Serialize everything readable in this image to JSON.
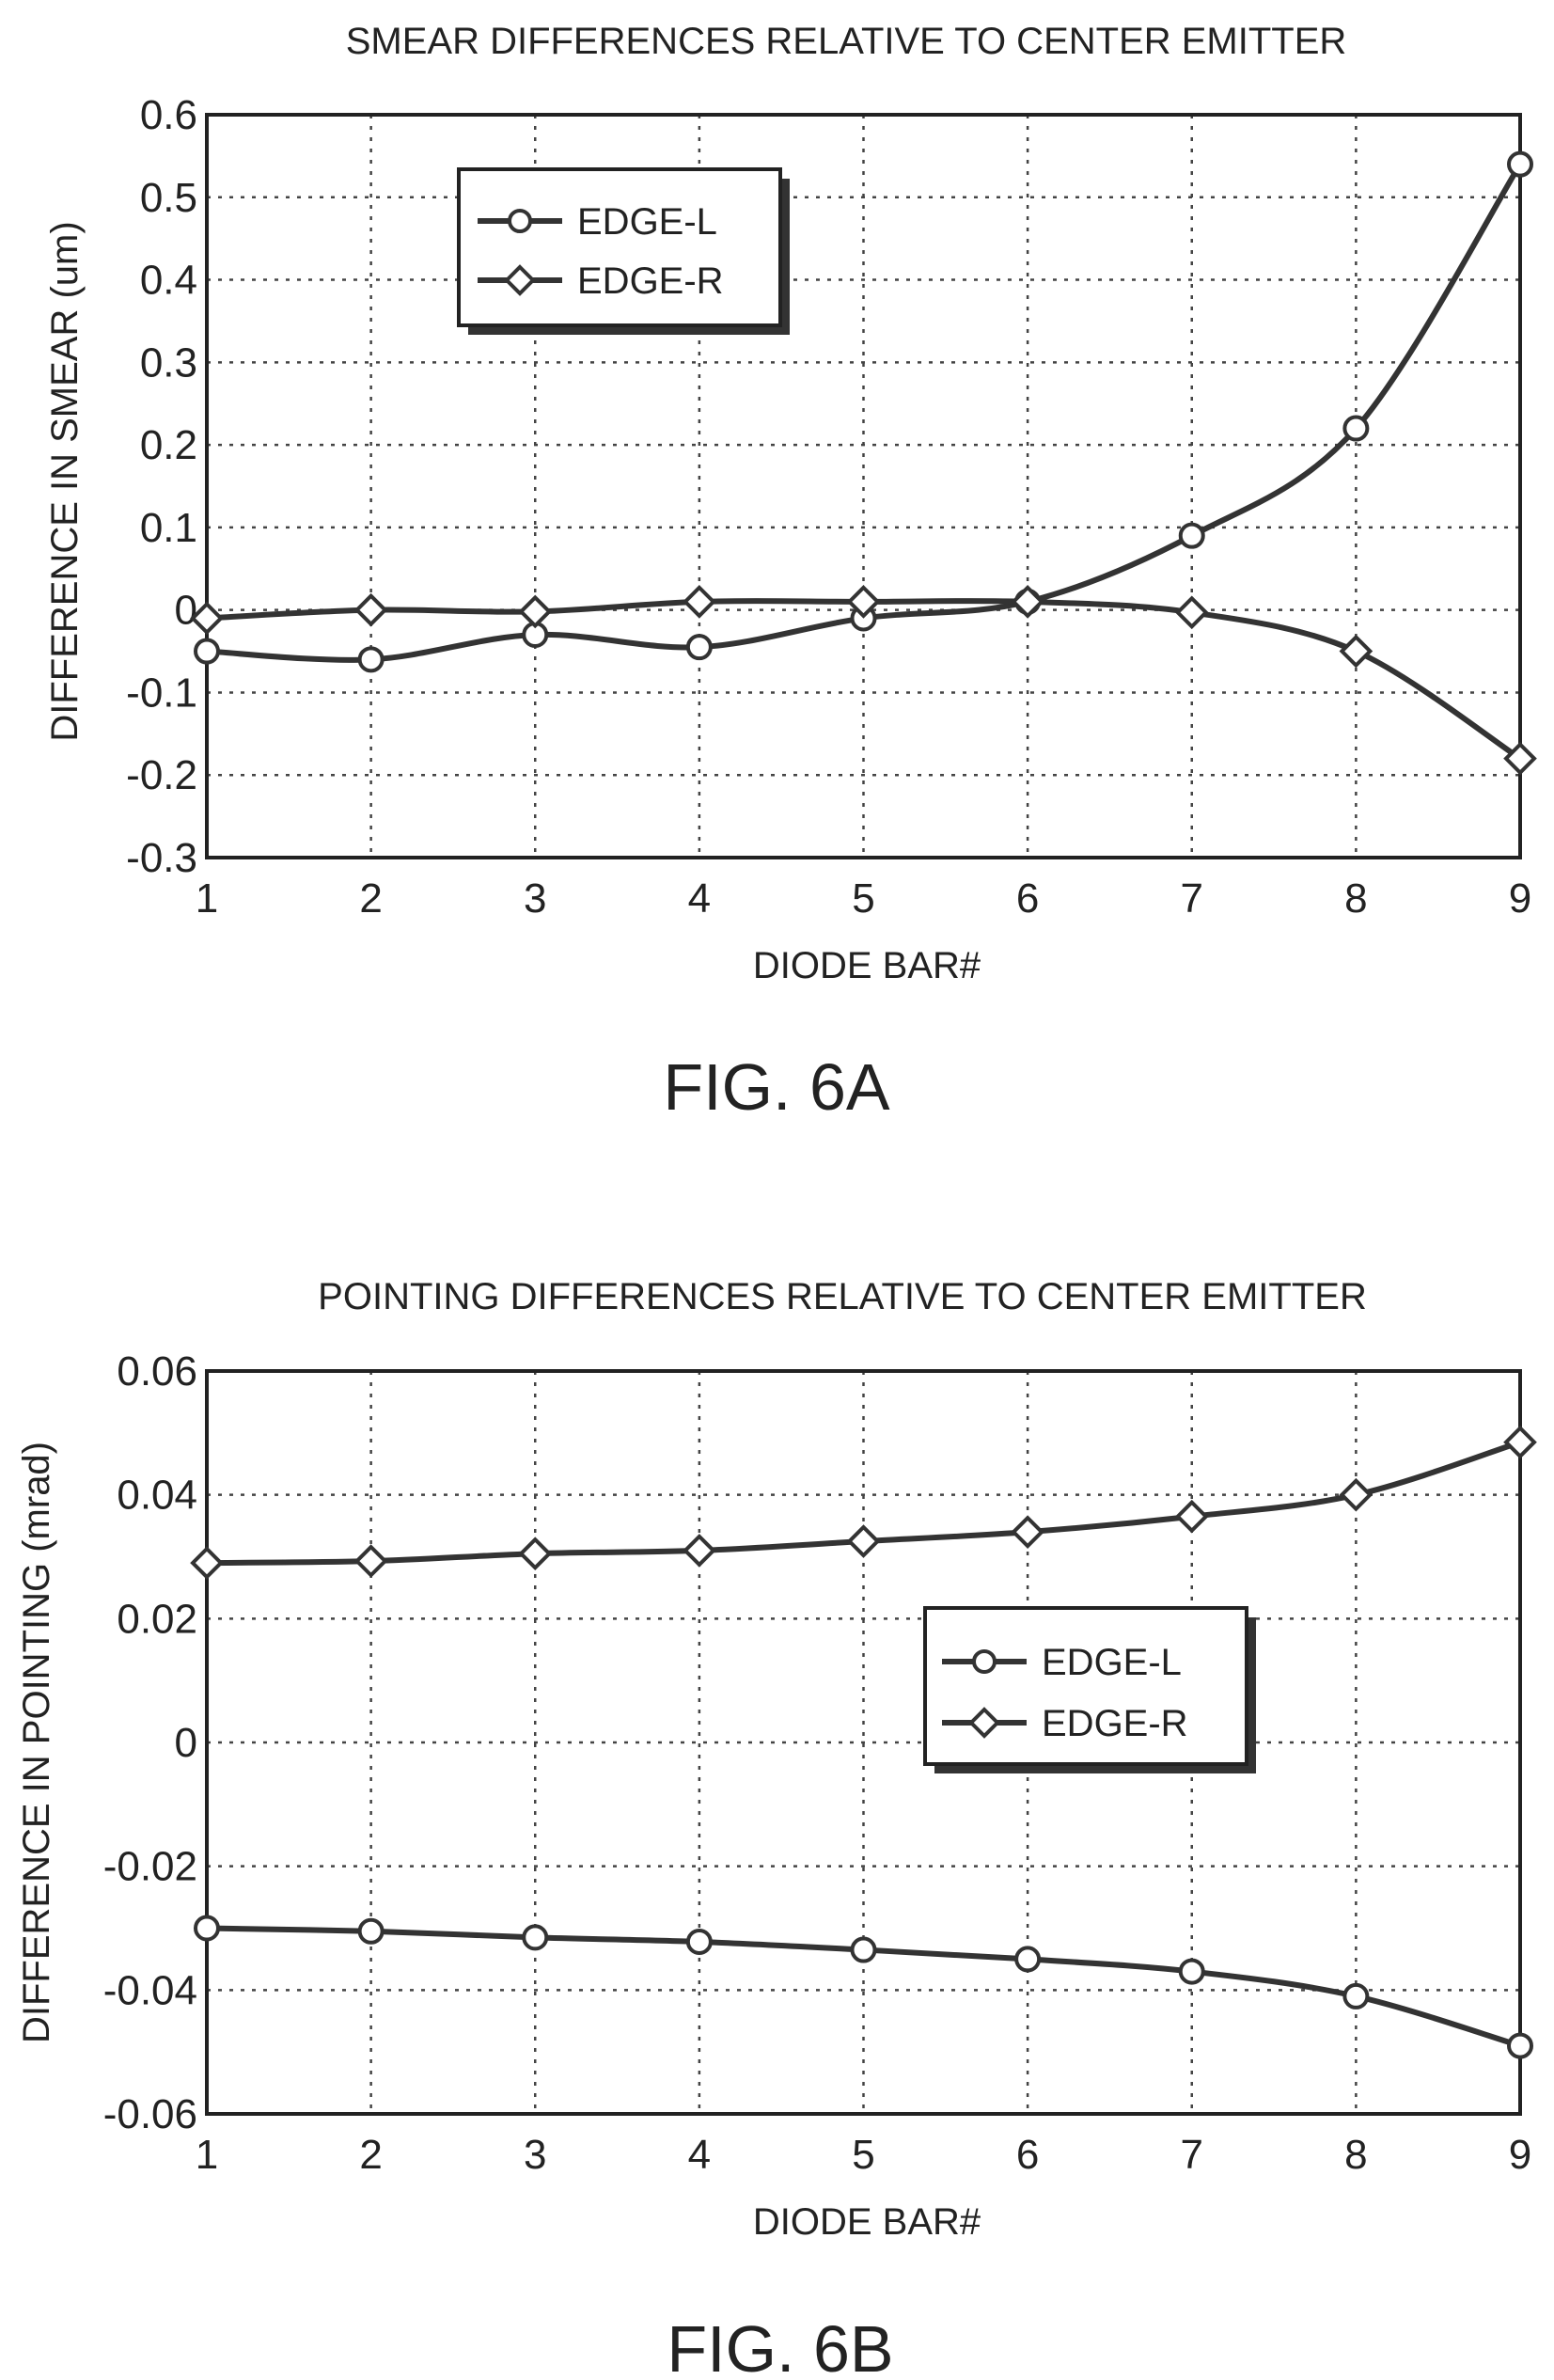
{
  "chart_data": [
    {
      "type": "line",
      "title": "SMEAR DIFFERENCES RELATIVE TO CENTER EMITTER",
      "xlabel": "DIODE BAR#",
      "ylabel": "DIFFERENCE IN SMEAR (um)",
      "caption": "FIG. 6A",
      "x": [
        1,
        2,
        3,
        4,
        5,
        6,
        7,
        8,
        9
      ],
      "xlim": [
        1,
        9
      ],
      "ylim": [
        -0.3,
        0.6
      ],
      "yticks": [
        0.6,
        0.5,
        0.4,
        0.3,
        0.2,
        0.1,
        0,
        -0.1,
        -0.2,
        -0.3
      ],
      "ytick_labels": [
        "0.6",
        "0.5",
        "0.4",
        "0.3",
        "0.2",
        "0.1",
        "0",
        "-0.1",
        "-0.2",
        "-0.3"
      ],
      "xtick_labels": [
        "1",
        "2",
        "3",
        "4",
        "5",
        "6",
        "7",
        "8",
        "9"
      ],
      "grid": true,
      "legend_position": "upper-left",
      "series": [
        {
          "name": "EDGE-L",
          "marker": "circle",
          "values": [
            -0.05,
            -0.06,
            -0.03,
            -0.045,
            -0.01,
            0.01,
            0.09,
            0.22,
            0.54
          ]
        },
        {
          "name": "EDGE-R",
          "marker": "diamond",
          "values": [
            -0.01,
            0.0,
            -0.002,
            0.01,
            0.01,
            0.01,
            -0.003,
            -0.05,
            -0.18
          ]
        }
      ]
    },
    {
      "type": "line",
      "title": "POINTING DIFFERENCES RELATIVE TO CENTER EMITTER",
      "xlabel": "DIODE BAR#",
      "ylabel": "DIFFERENCE IN POINTING (mrad)",
      "caption": "FIG. 6B",
      "x": [
        1,
        2,
        3,
        4,
        5,
        6,
        7,
        8,
        9
      ],
      "xlim": [
        1,
        9
      ],
      "ylim": [
        -0.06,
        0.06
      ],
      "yticks": [
        0.06,
        0.04,
        0.02,
        0,
        -0.02,
        -0.04,
        -0.06
      ],
      "ytick_labels": [
        "0.06",
        "0.04",
        "0.02",
        "0",
        "-0.02",
        "-0.04",
        "-0.06"
      ],
      "xtick_labels": [
        "1",
        "2",
        "3",
        "4",
        "5",
        "6",
        "7",
        "8",
        "9"
      ],
      "grid": true,
      "legend_position": "center-right",
      "series": [
        {
          "name": "EDGE-L",
          "marker": "circle",
          "values": [
            -0.03,
            -0.0305,
            -0.0315,
            -0.0322,
            -0.0335,
            -0.035,
            -0.037,
            -0.041,
            -0.049
          ]
        },
        {
          "name": "EDGE-R",
          "marker": "diamond",
          "values": [
            0.029,
            0.0293,
            0.0305,
            0.031,
            0.0325,
            0.034,
            0.0365,
            0.04,
            0.0485
          ]
        }
      ]
    }
  ]
}
